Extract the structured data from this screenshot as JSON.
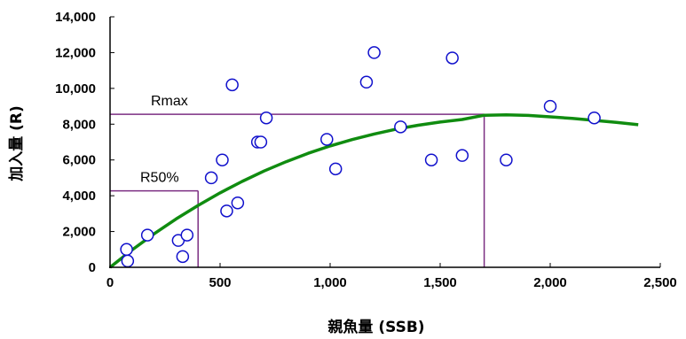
{
  "chart_data": {
    "type": "scatter",
    "xlabel": "親魚量 (SSB)",
    "ylabel": "加入量 (R)",
    "xlim": [
      0,
      2500
    ],
    "ylim": [
      0,
      14000
    ],
    "x_ticks": [
      "0",
      "500",
      "1,000",
      "1,500",
      "2,000",
      "2,500"
    ],
    "y_ticks": [
      "0",
      "2,000",
      "4,000",
      "6,000",
      "8,000",
      "10,000",
      "12,000",
      "14,000"
    ],
    "x_tick_values": [
      0,
      500,
      1000,
      1500,
      2000,
      2500
    ],
    "y_tick_values": [
      0,
      2000,
      4000,
      6000,
      8000,
      10000,
      12000,
      14000
    ],
    "grid": false,
    "points": [
      {
        "x": 75,
        "y": 1000
      },
      {
        "x": 80,
        "y": 350
      },
      {
        "x": 170,
        "y": 1800
      },
      {
        "x": 310,
        "y": 1500
      },
      {
        "x": 330,
        "y": 600
      },
      {
        "x": 350,
        "y": 1800
      },
      {
        "x": 460,
        "y": 5000
      },
      {
        "x": 510,
        "y": 6000
      },
      {
        "x": 530,
        "y": 3150
      },
      {
        "x": 555,
        "y": 10200
      },
      {
        "x": 580,
        "y": 3600
      },
      {
        "x": 670,
        "y": 7000
      },
      {
        "x": 685,
        "y": 7000
      },
      {
        "x": 710,
        "y": 8350
      },
      {
        "x": 985,
        "y": 7150
      },
      {
        "x": 1025,
        "y": 5500
      },
      {
        "x": 1165,
        "y": 10350
      },
      {
        "x": 1200,
        "y": 12000
      },
      {
        "x": 1320,
        "y": 7850
      },
      {
        "x": 1460,
        "y": 6000
      },
      {
        "x": 1555,
        "y": 11700
      },
      {
        "x": 1600,
        "y": 6250
      },
      {
        "x": 1800,
        "y": 6000
      },
      {
        "x": 2000,
        "y": 9000
      },
      {
        "x": 2200,
        "y": 8350
      }
    ],
    "curve": {
      "type": "line",
      "x": [
        0,
        100,
        200,
        300,
        400,
        500,
        600,
        700,
        800,
        900,
        1000,
        1100,
        1200,
        1300,
        1400,
        1500,
        1600,
        1700,
        1800,
        1900,
        2000,
        2100,
        2200,
        2300,
        2400
      ],
      "y": [
        0,
        970,
        1870,
        2700,
        3460,
        4160,
        4800,
        5380,
        5900,
        6370,
        6780,
        7140,
        7450,
        7720,
        7940,
        8120,
        8260,
        8500,
        8520,
        8490,
        8410,
        8320,
        8210,
        8100,
        7970
      ],
      "color": "#108c10"
    },
    "annotations": [
      {
        "label": "Rmax",
        "x": 1700,
        "y": 8550
      },
      {
        "label": "R50%",
        "x": 400,
        "y": 4275
      }
    ],
    "colors": {
      "points": "#1010cc",
      "curve": "#108c10",
      "reference_lines": "#7b2e82",
      "axes": "#000000"
    }
  }
}
